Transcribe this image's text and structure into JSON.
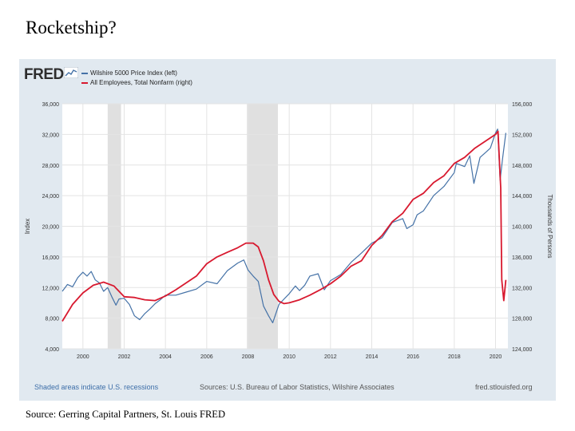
{
  "slide": {
    "title": "Rocketship?",
    "source": "Source: Gerring Capital Partners, St. Louis FRED"
  },
  "fred": {
    "logo": "FRED",
    "footer_note": "Shaded areas indicate U.S. recessions",
    "footer_sources": "Sources: U.S. Bureau of Labor Statistics, Wilshire Associates",
    "footer_site": "fred.stlouisfed.org"
  },
  "chart_data": {
    "type": "line",
    "xlim": [
      1999,
      2020.6
    ],
    "x_ticks": [
      2000,
      2002,
      2004,
      2006,
      2008,
      2010,
      2012,
      2014,
      2016,
      2018,
      2020
    ],
    "ylabel": "Index",
    "ylabel_right": "Thousands of Persons",
    "ylim": [
      4000,
      36000
    ],
    "y_ticks": [
      4000,
      8000,
      12000,
      16000,
      20000,
      24000,
      28000,
      32000,
      36000
    ],
    "ylim_right": [
      124000,
      156000
    ],
    "y_ticks_right": [
      124000,
      128000,
      132000,
      136000,
      140000,
      144000,
      148000,
      152000,
      156000
    ],
    "recessions": [
      [
        2001.2,
        2001.85
      ],
      [
        2007.95,
        2009.45
      ]
    ],
    "grid": true,
    "legend_placement": "top-left",
    "series": [
      {
        "name": "Wilshire 5000 Price Index (left)",
        "axis": "left",
        "color": "#4572a7",
        "x": [
          1999.0,
          1999.25,
          1999.5,
          1999.75,
          2000.0,
          2000.2,
          2000.4,
          2000.6,
          2000.8,
          2001.0,
          2001.2,
          2001.4,
          2001.6,
          2001.75,
          2002.0,
          2002.25,
          2002.5,
          2002.75,
          2003.0,
          2003.25,
          2003.5,
          2003.75,
          2004.0,
          2004.5,
          2005.0,
          2005.5,
          2006.0,
          2006.5,
          2007.0,
          2007.5,
          2007.8,
          2008.0,
          2008.25,
          2008.5,
          2008.75,
          2009.0,
          2009.2,
          2009.5,
          2009.75,
          2010.0,
          2010.3,
          2010.5,
          2010.75,
          2011.0,
          2011.4,
          2011.7,
          2012.0,
          2012.5,
          2013.0,
          2013.5,
          2014.0,
          2014.5,
          2015.0,
          2015.5,
          2015.7,
          2016.0,
          2016.2,
          2016.5,
          2017.0,
          2017.5,
          2018.0,
          2018.1,
          2018.5,
          2018.75,
          2018.95,
          2019.25,
          2019.5,
          2019.75,
          2020.0,
          2020.1,
          2020.22,
          2020.35,
          2020.5
        ],
        "values": [
          11500,
          12400,
          12100,
          13300,
          14000,
          13500,
          14100,
          13000,
          12600,
          11500,
          12000,
          10800,
          9700,
          10500,
          10600,
          9800,
          8300,
          7800,
          8600,
          9200,
          9900,
          10400,
          11000,
          11000,
          11400,
          11800,
          12800,
          12500,
          14200,
          15200,
          15600,
          14300,
          13500,
          12800,
          9600,
          8300,
          7400,
          9800,
          10500,
          11200,
          12200,
          11600,
          12300,
          13500,
          13800,
          11700,
          12900,
          13700,
          15300,
          16500,
          17800,
          18500,
          20500,
          21000,
          19700,
          20200,
          21500,
          22000,
          24000,
          25200,
          27000,
          28200,
          27800,
          29200,
          25600,
          29000,
          29600,
          30200,
          32200,
          32700,
          26000,
          29000,
          32200
        ]
      },
      {
        "name": "All Employees, Total Nonfarm (right)",
        "axis": "right",
        "color": "#d8192f",
        "x": [
          1999.0,
          1999.5,
          2000.0,
          2000.5,
          2001.0,
          2001.5,
          2002.0,
          2002.5,
          2003.0,
          2003.5,
          2004.0,
          2004.5,
          2005.0,
          2005.5,
          2006.0,
          2006.5,
          2007.0,
          2007.5,
          2007.9,
          2008.25,
          2008.5,
          2008.75,
          2009.0,
          2009.25,
          2009.5,
          2009.75,
          2010.0,
          2010.5,
          2011.0,
          2011.5,
          2012.0,
          2012.5,
          2013.0,
          2013.5,
          2014.0,
          2014.5,
          2015.0,
          2015.5,
          2016.0,
          2016.5,
          2017.0,
          2017.5,
          2018.0,
          2018.5,
          2019.0,
          2019.5,
          2020.0,
          2020.12,
          2020.25,
          2020.3,
          2020.4,
          2020.5
        ],
        "values": [
          127600,
          129800,
          131300,
          132300,
          132700,
          132200,
          130800,
          130700,
          130400,
          130300,
          130900,
          131700,
          132600,
          133500,
          135100,
          136000,
          136600,
          137200,
          137800,
          137800,
          137300,
          135500,
          133000,
          131100,
          130200,
          129900,
          130000,
          130400,
          131000,
          131700,
          132500,
          133500,
          134800,
          135500,
          137500,
          138800,
          140600,
          141700,
          143500,
          144300,
          145700,
          146600,
          148200,
          149000,
          150200,
          151100,
          152000,
          152400,
          145000,
          133000,
          130300,
          133000
        ]
      }
    ]
  }
}
